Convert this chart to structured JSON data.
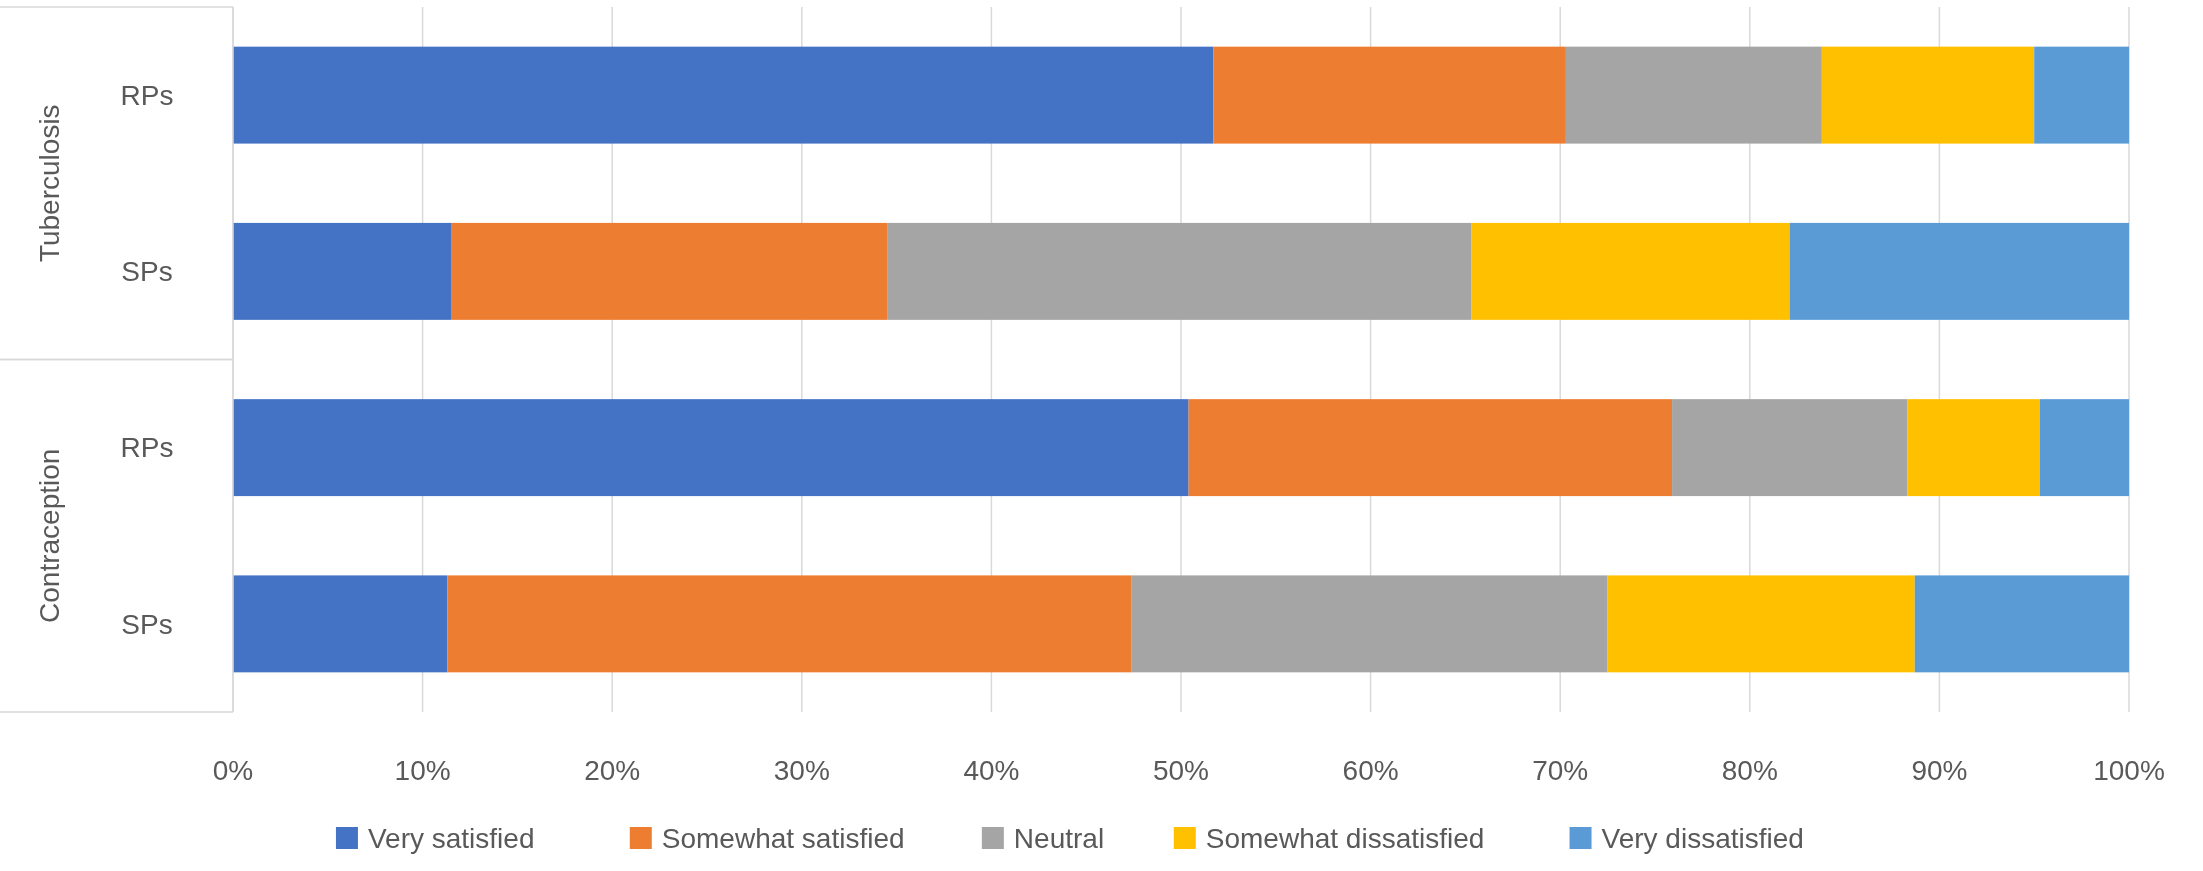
{
  "chart_data": {
    "type": "bar",
    "orientation": "horizontal",
    "stacked": true,
    "categories": [
      "RPs",
      "SPs",
      "RPs",
      "SPs"
    ],
    "series": [
      {
        "name": "Very satisfied",
        "color": "#4472c4",
        "values": [
          51.7,
          11.5,
          50.4,
          11.3
        ]
      },
      {
        "name": "Somewhat satisfied",
        "color": "#ed7d31",
        "values": [
          18.6,
          23.0,
          25.5,
          36.1
        ]
      },
      {
        "name": "Neutral",
        "color": "#a5a5a5",
        "values": [
          13.5,
          30.8,
          12.4,
          25.1
        ]
      },
      {
        "name": "Somewhat dissatisfied",
        "color": "#ffc000",
        "values": [
          11.2,
          16.8,
          7.0,
          16.2
        ]
      },
      {
        "name": "Very dissatisfied",
        "color": "#5b9bd5",
        "values": [
          5.0,
          17.9,
          4.7,
          11.3
        ]
      }
    ],
    "annotations": [
      "Tuberculosis",
      "Contraception"
    ],
    "xlim": [
      0,
      100
    ],
    "xticks": [
      {
        "value": 0,
        "label": "0%"
      },
      {
        "value": 10,
        "label": "10%"
      },
      {
        "value": 20,
        "label": "20%"
      },
      {
        "value": 30,
        "label": "30%"
      },
      {
        "value": 40,
        "label": "40%"
      },
      {
        "value": 50,
        "label": "50%"
      },
      {
        "value": 60,
        "label": "60%"
      },
      {
        "value": 70,
        "label": "70%"
      },
      {
        "value": 80,
        "label": "80%"
      },
      {
        "value": 90,
        "label": "90%"
      },
      {
        "value": 100,
        "label": "100%"
      }
    ],
    "grid": "x",
    "legend": "bottom"
  }
}
